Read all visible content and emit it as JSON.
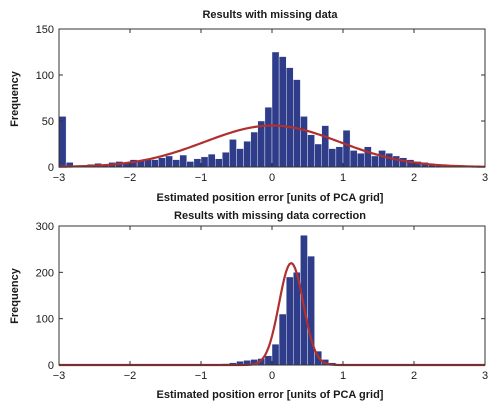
{
  "colors": {
    "bar": "#2e3c8a",
    "fit": "#b03030"
  },
  "chart_data": [
    {
      "type": "bar",
      "title": "Results with missing data",
      "xlabel": "Estimated position error [units of PCA grid]",
      "ylabel": "Frequency",
      "xlim": [
        -3,
        3
      ],
      "ylim": [
        0,
        150
      ],
      "xticks": [
        "-3",
        "-2",
        "-1",
        "0",
        "1",
        "2",
        "3"
      ],
      "yticks": [
        "0",
        "50",
        "100",
        "150"
      ],
      "bin_width": 0.1,
      "bin_centers": [
        -2.95,
        -2.85,
        -2.75,
        -2.65,
        -2.55,
        -2.45,
        -2.35,
        -2.25,
        -2.15,
        -2.05,
        -1.95,
        -1.85,
        -1.75,
        -1.65,
        -1.55,
        -1.45,
        -1.35,
        -1.25,
        -1.15,
        -1.05,
        -0.95,
        -0.85,
        -0.75,
        -0.65,
        -0.55,
        -0.45,
        -0.35,
        -0.25,
        -0.15,
        -0.05,
        0.05,
        0.15,
        0.25,
        0.35,
        0.45,
        0.55,
        0.65,
        0.75,
        0.85,
        0.95,
        1.05,
        1.15,
        1.25,
        1.35,
        1.45,
        1.55,
        1.65,
        1.75,
        1.85,
        1.95,
        2.05,
        2.15,
        2.25,
        2.35,
        2.45,
        2.55,
        2.65,
        2.75,
        2.85,
        2.95
      ],
      "values": [
        55,
        5,
        2,
        2,
        3,
        4,
        3,
        5,
        6,
        5,
        8,
        7,
        9,
        8,
        10,
        12,
        8,
        13,
        6,
        9,
        11,
        14,
        9,
        16,
        30,
        20,
        28,
        38,
        50,
        65,
        125,
        120,
        108,
        95,
        55,
        35,
        25,
        45,
        20,
        22,
        40,
        18,
        15,
        22,
        12,
        18,
        15,
        12,
        10,
        8,
        6,
        5,
        3,
        3,
        2,
        2,
        2,
        1,
        1,
        1
      ],
      "fit": {
        "type": "normal",
        "mean": 0.0,
        "sd": 0.95,
        "peak": 45
      }
    },
    {
      "type": "bar",
      "title": "Results with missing data correction",
      "xlabel": "Estimated position error [units of PCA grid]",
      "ylabel": "Frequency",
      "xlim": [
        -3,
        3
      ],
      "ylim": [
        0,
        300
      ],
      "xticks": [
        "-3",
        "-2",
        "-1",
        "0",
        "1",
        "2",
        "3"
      ],
      "yticks": [
        "0",
        "100",
        "200",
        "300"
      ],
      "bin_width": 0.1,
      "bin_centers": [
        -0.85,
        -0.75,
        -0.65,
        -0.55,
        -0.45,
        -0.35,
        -0.25,
        -0.15,
        -0.05,
        0.05,
        0.15,
        0.25,
        0.35,
        0.45,
        0.55,
        0.65,
        0.75,
        0.85,
        0.95
      ],
      "values": [
        1,
        2,
        3,
        5,
        8,
        10,
        12,
        14,
        20,
        45,
        110,
        190,
        200,
        280,
        235,
        30,
        12,
        5,
        2
      ],
      "fit": {
        "type": "normal",
        "mean": 0.27,
        "sd": 0.17,
        "peak": 220
      }
    }
  ]
}
